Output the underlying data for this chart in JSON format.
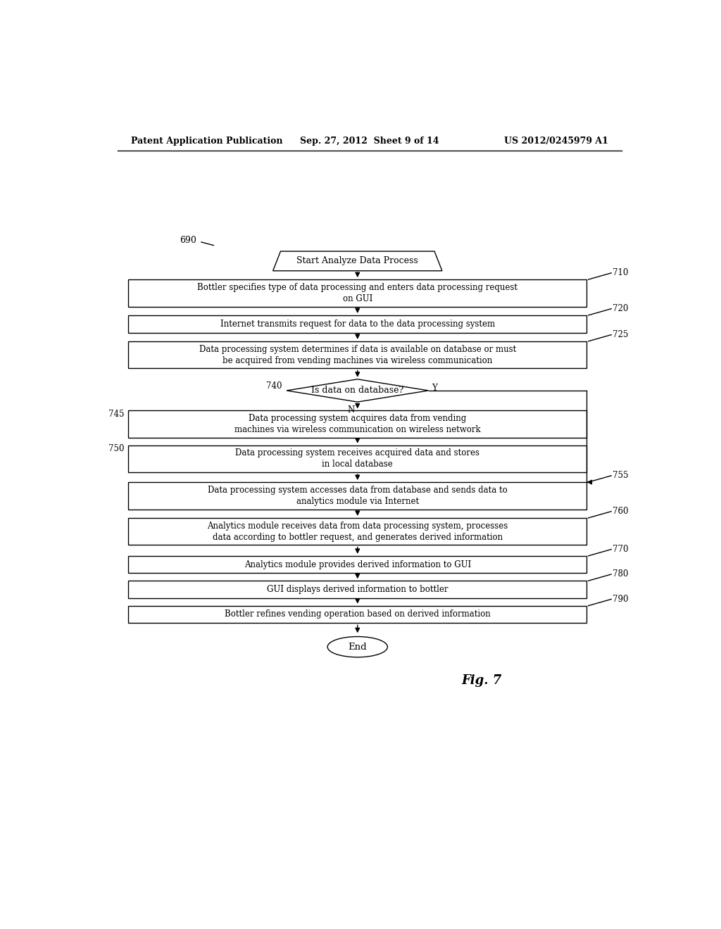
{
  "header_left": "Patent Application Publication",
  "header_center": "Sep. 27, 2012  Sheet 9 of 14",
  "header_right": "US 2012/0245979 A1",
  "fig_label": "Fig. 7",
  "start_label": "690",
  "start_text": "Start Analyze Data Process",
  "box_710": "Bottler specifies type of data processing and enters data processing request\non GUI",
  "box_720": "Internet transmits request for data to the data processing system",
  "box_725": "Data processing system determines if data is available on database or must\nbe acquired from vending machines via wireless communication",
  "box_740": "Is data on database?",
  "box_745": "Data processing system acquires data from vending\nmachines via wireless communication on wireless network",
  "box_750": "Data processing system receives acquired data and stores\nin local database",
  "box_755": "Data processing system accesses data from database and sends data to\nanalytics module via Internet",
  "box_760": "Analytics module receives data from data processing system, processes\ndata according to bottler request, and generates derived information",
  "box_770": "Analytics module provides derived information to GUI",
  "box_780": "GUI displays derived information to bottler",
  "box_790": "Bottler refines vending operation based on derived information",
  "end_text": "End",
  "bg_color": "#ffffff",
  "text_color": "#000000"
}
